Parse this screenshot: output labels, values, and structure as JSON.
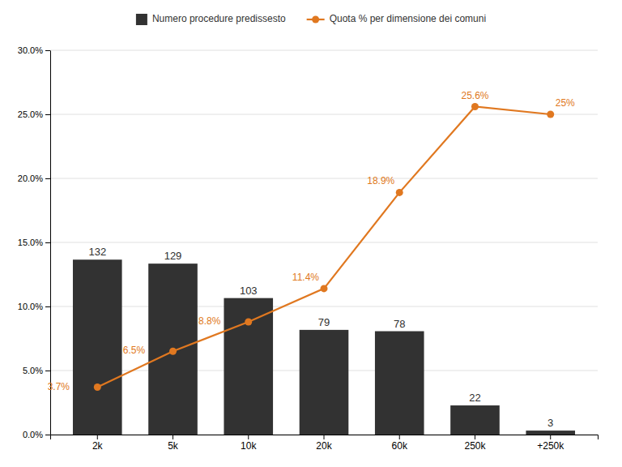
{
  "chart_data": {
    "type": "bar",
    "categories": [
      "2k",
      "5k",
      "10k",
      "20k",
      "60k",
      "250k",
      "+250k"
    ],
    "series": [
      {
        "name": "Numero procedure predissesto",
        "type": "bar",
        "color": "#323232",
        "axis": "y2",
        "values": [
          132,
          129,
          103,
          79,
          78,
          22,
          3
        ]
      },
      {
        "name": "Quota % per dimensione dei comuni",
        "type": "line",
        "color": "#e07820",
        "marker": "circle",
        "values": [
          3.7,
          6.5,
          8.8,
          11.4,
          18.9,
          25.6,
          25.0
        ],
        "value_labels": [
          "3.7%",
          "6.5%",
          "8.8%",
          "11.4%",
          "18.9%",
          "25.6%",
          "25%"
        ]
      }
    ],
    "ylim": [
      0,
      30
    ],
    "yticks": [
      {
        "value": 0,
        "label": "0.0%"
      },
      {
        "value": 5,
        "label": "5.0%"
      },
      {
        "value": 10,
        "label": "10.0%"
      },
      {
        "value": 15,
        "label": "15.0%"
      },
      {
        "value": 20,
        "label": "20.0%"
      },
      {
        "value": 25,
        "label": "25.0%"
      },
      {
        "value": 30,
        "label": "30.0%"
      }
    ],
    "y2lim": [
      0,
      290
    ],
    "grid": true,
    "legend": "top",
    "data_labels": true
  }
}
